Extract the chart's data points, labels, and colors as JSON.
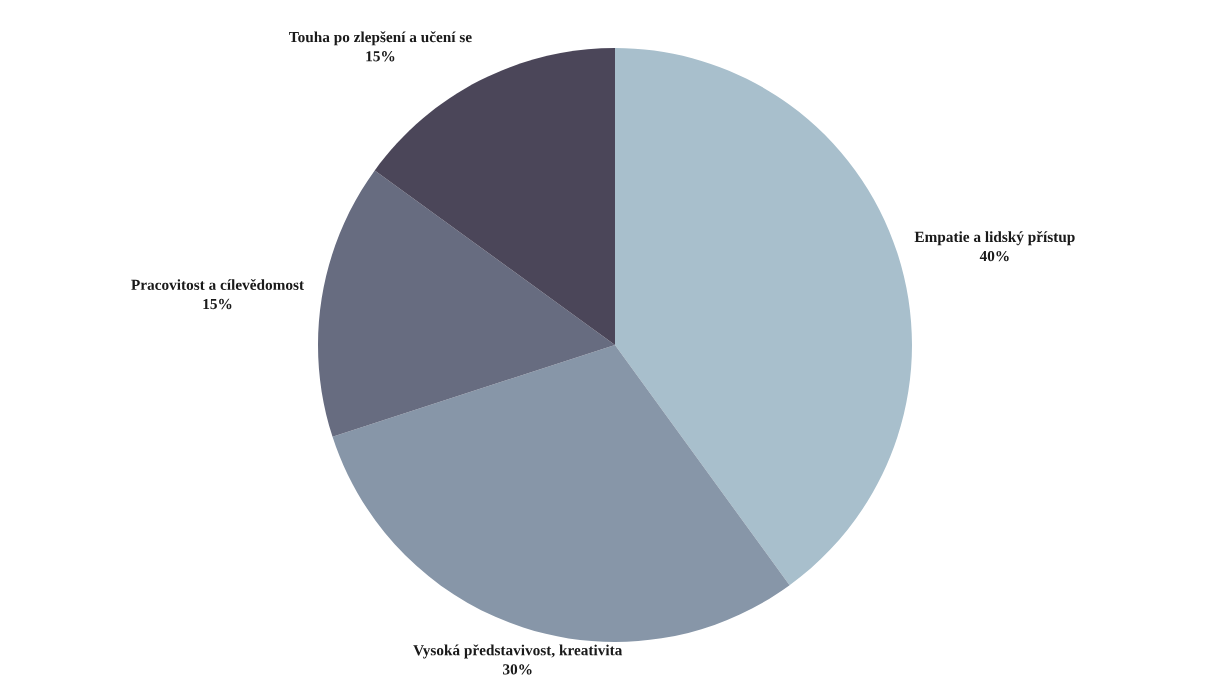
{
  "chart_data": {
    "type": "pie",
    "categories": [
      "Empatie a lidský přístup",
      "Vysoká představivost, kreativita",
      "Pracovitost a cílevědomost",
      "Touha po zlepšení a učení se"
    ],
    "values": [
      40,
      30,
      15,
      15
    ],
    "value_labels": [
      "40%",
      "30%",
      "15%",
      "15%"
    ],
    "colors": [
      "#a8bfcc",
      "#8796a8",
      "#676c80",
      "#4b4659"
    ]
  }
}
